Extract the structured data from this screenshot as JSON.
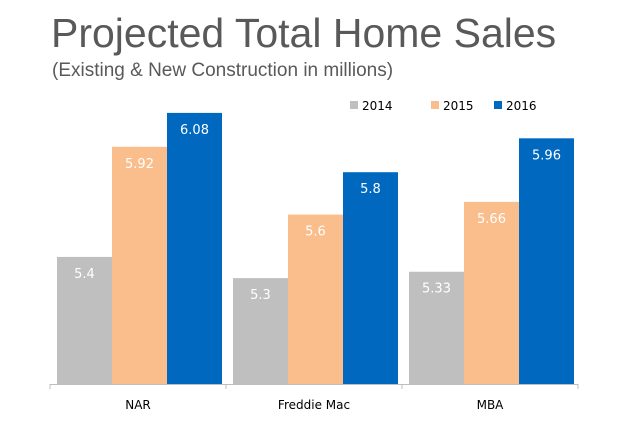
{
  "chart_data": {
    "type": "bar",
    "title": "Projected Total Home Sales",
    "subtitle": "(Existing & New Construction in millions)",
    "categories": [
      "NAR",
      "Freddie Mac",
      "MBA"
    ],
    "series": [
      {
        "name": "2014",
        "values": [
          5.4,
          5.3,
          5.33
        ],
        "labels": [
          "5.4",
          "5.3",
          "5.33"
        ],
        "color": "#BFBFBF"
      },
      {
        "name": "2015",
        "values": [
          5.92,
          5.6,
          5.66
        ],
        "labels": [
          "5.92",
          "5.6",
          "5.66"
        ],
        "color": "#F9BE8C"
      },
      {
        "name": "2016",
        "values": [
          6.08,
          5.8,
          5.96
        ],
        "labels": [
          "6.08",
          "5.8",
          "5.96"
        ],
        "color": "#0068BF"
      }
    ],
    "ylim": [
      4.8,
      6.2
    ],
    "y_axis_visible": false,
    "grid": false,
    "data_labels": "inside-top",
    "legend": "top-right"
  }
}
